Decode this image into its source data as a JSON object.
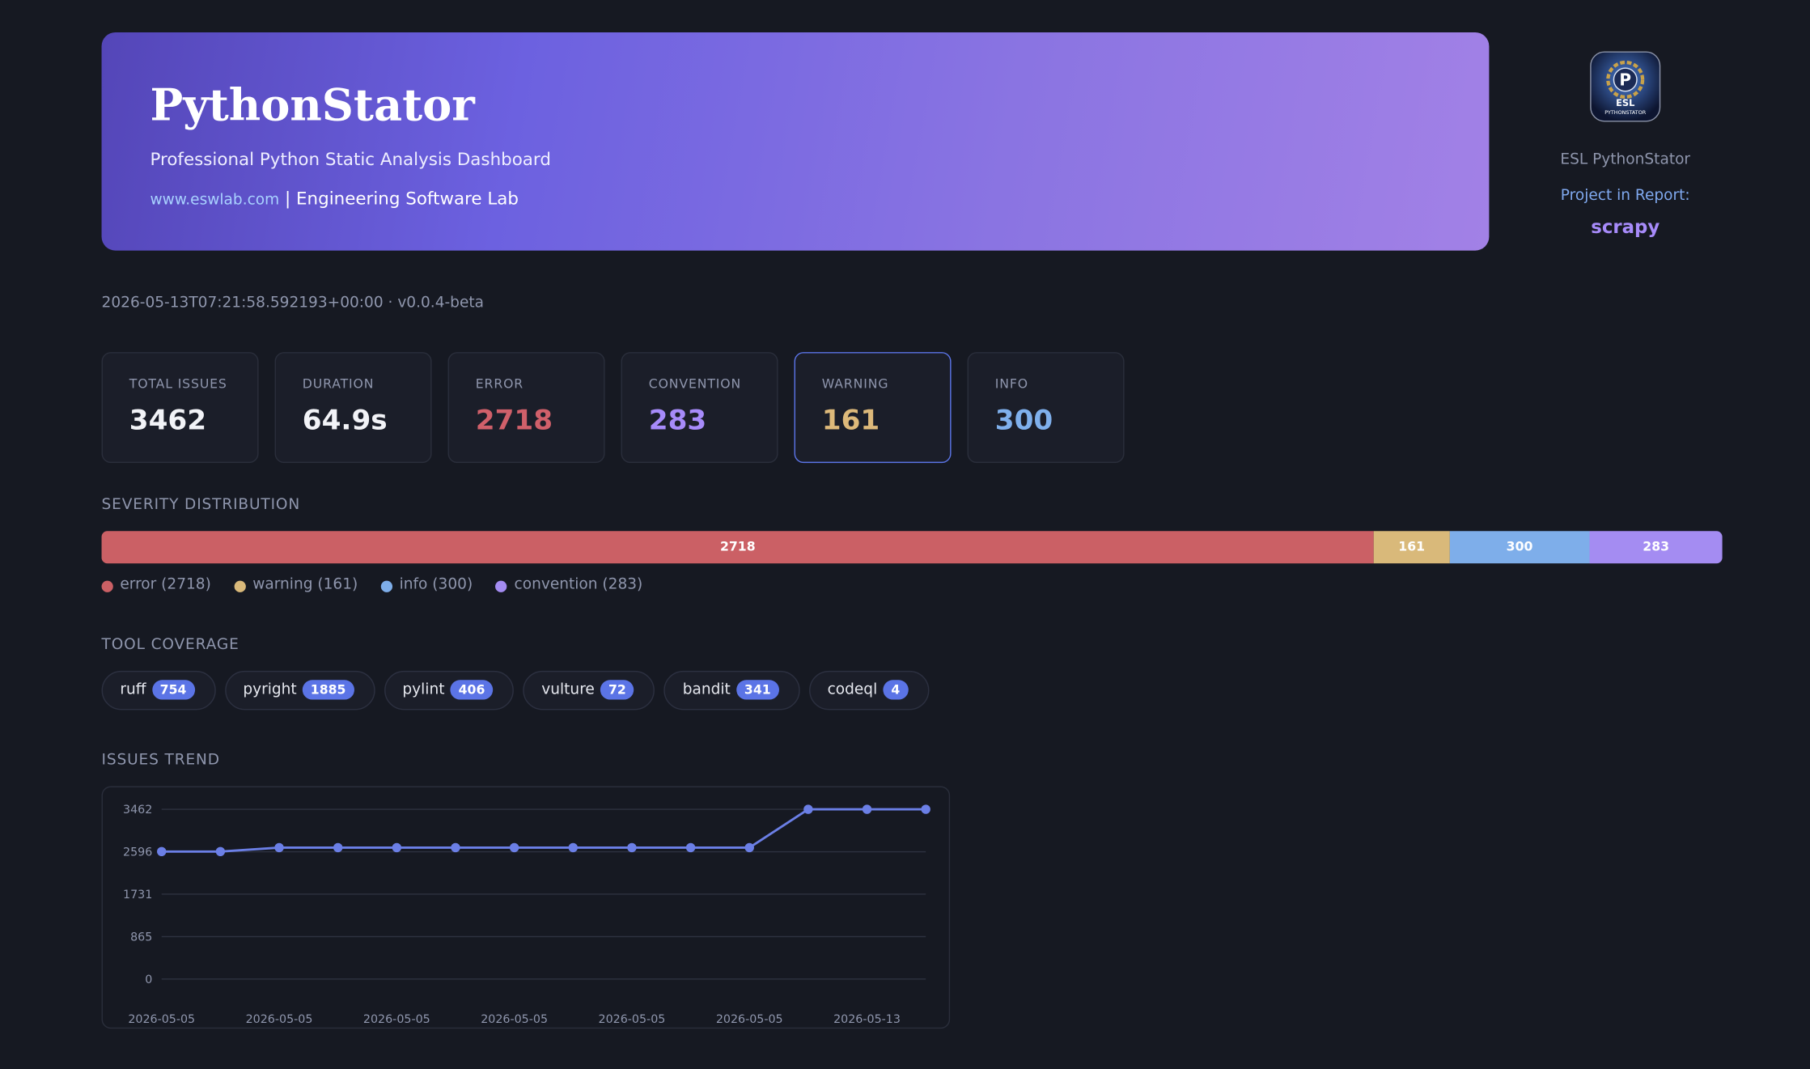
{
  "header": {
    "title": "PythonStator",
    "subtitle": "Professional Python Static Analysis Dashboard",
    "link": "www.eswlab.com",
    "lab": "| Engineering Software Lab"
  },
  "sidebar": {
    "logo": {
      "mark": "P",
      "line1": "ESL",
      "line2": "PYTHONSTATOR"
    },
    "name": "ESL PythonStator",
    "project_label": "Project in Report:",
    "project": "scrapy"
  },
  "meta": "2026-05-13T07:21:58.592193+00:00 · v0.0.4-beta",
  "stats": [
    {
      "label": "TOTAL ISSUES",
      "value": 3462,
      "color": "#f2f3f7"
    },
    {
      "label": "DURATION",
      "value": "64.9s",
      "color": "#f2f3f7"
    },
    {
      "label": "ERROR",
      "value": 2718,
      "color": "#d0606a"
    },
    {
      "label": "CONVENTION",
      "value": 283,
      "color": "#a78bfa"
    },
    {
      "label": "WARNING",
      "value": 161,
      "color": "#ddb97a",
      "highlight": true
    },
    {
      "label": "INFO",
      "value": 300,
      "color": "#7fb0ec"
    }
  ],
  "severity": {
    "title": "SEVERITY DISTRIBUTION",
    "segments": [
      {
        "value": 2718,
        "color": "#cb6065",
        "legend": "error (2718)"
      },
      {
        "value": 161,
        "color": "#d9b97a",
        "legend": "warning (161)"
      },
      {
        "value": 300,
        "color": "#7eaeea",
        "legend": "info (300)"
      },
      {
        "value": 283,
        "color": "#a48cf2",
        "legend": "convention (283)"
      }
    ]
  },
  "tools": {
    "title": "TOOL COVERAGE",
    "items": [
      {
        "name": "ruff",
        "count": 754
      },
      {
        "name": "pyright",
        "count": 1885
      },
      {
        "name": "pylint",
        "count": 406
      },
      {
        "name": "vulture",
        "count": 72
      },
      {
        "name": "bandit",
        "count": 341
      },
      {
        "name": "codeql",
        "count": 4
      }
    ]
  },
  "chart_data": {
    "type": "line",
    "title": "ISSUES TREND",
    "categories": [
      "2026-05-05",
      null,
      "2026-05-05",
      null,
      "2026-05-05",
      null,
      "2026-05-05",
      null,
      "2026-05-05",
      null,
      "2026-05-05",
      null,
      "2026-05-13",
      null
    ],
    "series": [
      {
        "color": "#6b7fe6",
        "values": [
          2600,
          2600,
          2680,
          2680,
          2680,
          2680,
          2680,
          2680,
          2680,
          2680,
          2680,
          3462,
          3462,
          3462
        ]
      }
    ],
    "ylim": [
      0,
      3462
    ],
    "yticks": [
      0,
      865,
      1731,
      2596,
      3462
    ],
    "grid": true
  }
}
